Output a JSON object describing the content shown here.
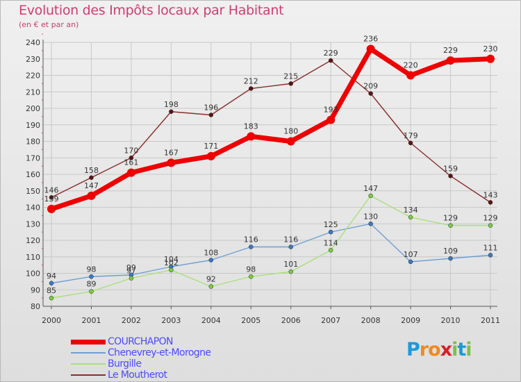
{
  "header": {
    "title": "Evolution des Impôts locaux par Habitant",
    "subtitle": "(en € et par an)"
  },
  "logo": {
    "letters": [
      "P",
      "r",
      "o",
      "x",
      "i",
      "t",
      "i"
    ],
    "colors": [
      "#1e9ad6",
      "#f08a1c",
      "#f08a1c",
      "#d81e2a",
      "#7cc243",
      "#1e9ad6",
      "#7cc243"
    ]
  },
  "chart_data": {
    "type": "line",
    "categories": [
      "2000",
      "2001",
      "2002",
      "2003",
      "2004",
      "2005",
      "2006",
      "2007",
      "2008",
      "2009",
      "2010",
      "2011"
    ],
    "ylim": [
      80,
      240
    ],
    "yticks": [
      "80",
      "90",
      "100",
      "110",
      "120",
      "130",
      "140",
      "150",
      "160",
      "170",
      "180",
      "190",
      "200",
      "210",
      "220",
      "230",
      "240"
    ],
    "grid": true,
    "legend_position": "bottom-left",
    "series": [
      {
        "name": "Le Moutherot",
        "color": "#8b2c2c",
        "dot_color": "#5a1414",
        "values": [
          146,
          158,
          170,
          198,
          196,
          212,
          215,
          229,
          209,
          179,
          159,
          143
        ]
      },
      {
        "name": "Chenevrey-et-Morogne",
        "color": "#6e9ed4",
        "dot_color": "#3a7ac4",
        "values": [
          94,
          98,
          99,
          104,
          108,
          116,
          116,
          125,
          130,
          107,
          109,
          111
        ]
      },
      {
        "name": "Burgille",
        "color": "#a8e07a",
        "dot_color": "#7ccc3e",
        "values": [
          85,
          89,
          97,
          102,
          92,
          98,
          101,
          114,
          147,
          134,
          129,
          129
        ]
      },
      {
        "name": "COURCHAPON",
        "color": "#ee0000",
        "dot_color": "#ee0000",
        "values": [
          139,
          147,
          161,
          167,
          171,
          183,
          180,
          193,
          236,
          220,
          229,
          230
        ]
      }
    ],
    "legend_order": [
      "COURCHAPON",
      "Chenevrey-et-Morogne",
      "Burgille",
      "Le Moutherot"
    ]
  }
}
